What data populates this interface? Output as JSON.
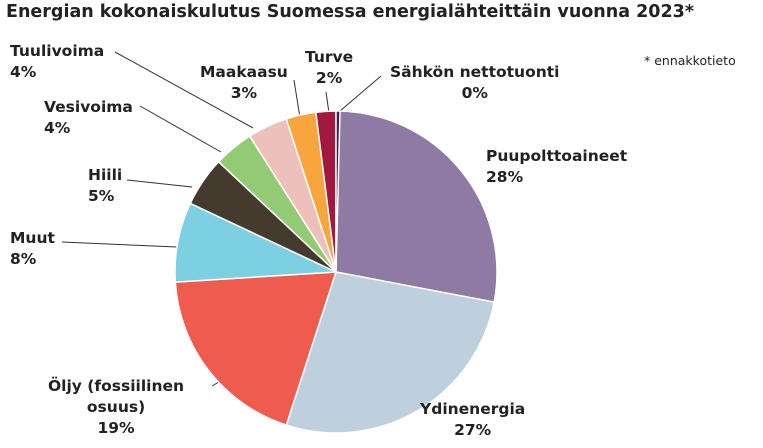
{
  "chart_data": {
    "type": "pie",
    "title": "Energian kokonaiskulutus Suomessa energialähteittäin vuonna 2023*",
    "note": "* ennakkotieto",
    "slices": [
      {
        "label": "Puupolttoaineet",
        "value": 28,
        "value_label": "28%",
        "color": "#8f7aa3"
      },
      {
        "label": "Ydinenergia",
        "value": 27,
        "value_label": "27%",
        "color": "#bed0dd"
      },
      {
        "label": "Öljy (fossiilinen osuus)",
        "label_lines": [
          "Öljy (fossiilinen",
          "osuus)"
        ],
        "value": 19,
        "value_label": "19%",
        "color": "#ef5b4c"
      },
      {
        "label": "Muut",
        "value": 8,
        "value_label": "8%",
        "color": "#7dcfe2"
      },
      {
        "label": "Hiili",
        "value": 5,
        "value_label": "5%",
        "color": "#453a2e"
      },
      {
        "label": "Vesivoima",
        "value": 4,
        "value_label": "4%",
        "color": "#92cb74"
      },
      {
        "label": "Tuulivoima",
        "value": 4,
        "value_label": "4%",
        "color": "#edc0bc"
      },
      {
        "label": "Maakaasu",
        "value": 3,
        "value_label": "3%",
        "color": "#f7a53d"
      },
      {
        "label": "Turve",
        "value": 2,
        "value_label": "2%",
        "color": "#a2193f"
      },
      {
        "label": "Sähkön nettotuonti",
        "value": 0,
        "value_label": "0%",
        "color": "#3f1f57"
      }
    ]
  }
}
